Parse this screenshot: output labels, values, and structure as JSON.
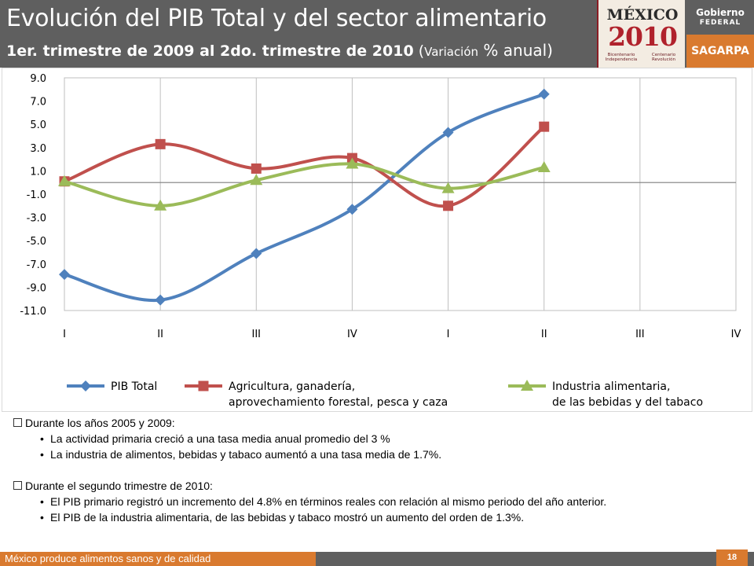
{
  "header": {
    "title": "Evolución del  PIB Total y del sector alimentario",
    "subtitle_bold": "1er. trimestre de 2009 al 2do. trimestre de 2010",
    "subtitle_paren_open": " (",
    "subtitle_small": "Variación",
    "subtitle_rest": " % anual)"
  },
  "logos": {
    "mexico_word": "MÉXICO",
    "mexico_year": "2010",
    "bicentenario_line1": "Bicentenario",
    "bicentenario_line2": "Independencia",
    "centenario_line1": "Centenario",
    "centenario_line2": "Revolución",
    "gobierno_line1": "Gobierno",
    "gobierno_line2": "FEDERAL",
    "sagarpa": "SAGARPA"
  },
  "chart_data": {
    "type": "line",
    "categories": [
      "I",
      "II",
      "III",
      "IV",
      "I",
      "II",
      "III",
      "IV"
    ],
    "y_ticks": [
      "9.0",
      "7.0",
      "5.0",
      "3.0",
      "1.0",
      "-1.0",
      "-3.0",
      "-5.0",
      "-7.0",
      "-9.0",
      "-11.0"
    ],
    "ylim": [
      -11,
      9
    ],
    "baseline": 0,
    "grid": "vertical",
    "smooth": true,
    "legend_position": "bottom",
    "series": [
      {
        "name": "PIB Total",
        "color": "#4f81bd",
        "marker": "diamond",
        "values": [
          -7.9,
          -10.1,
          -6.1,
          -2.3,
          4.3,
          7.6,
          null,
          null
        ]
      },
      {
        "name_line1": "Agricultura, ganadería,",
        "name_line2": "aprovechamiento forestal, pesca y caza",
        "color": "#c0504d",
        "marker": "square",
        "values": [
          0.1,
          3.3,
          1.2,
          2.1,
          -2.0,
          4.8,
          null,
          null
        ]
      },
      {
        "name_line1": "Industria alimentaria,",
        "name_line2": "de las bebidas y del tabaco",
        "color": "#9bbb59",
        "marker": "triangle",
        "values": [
          0.1,
          -2.0,
          0.2,
          1.6,
          -0.5,
          1.3,
          null,
          null
        ]
      }
    ]
  },
  "notes": {
    "section1": "Durante los años 2005 y 2009:",
    "section1_bullets": [
      "La actividad primaria creció a una tasa media anual promedio del 3 %",
      "La industria de alimentos, bebidas y tabaco aumentó a una tasa media de 1.7%."
    ],
    "section2": "Durante el segundo trimestre de 2010:",
    "section2_bullets": [
      "El PIB primario registró un incremento del  4.8% en términos reales con relación al mismo periodo del año anterior.",
      "El PIB de la industria alimentaria, de las bebidas y tabaco mostró un aumento del orden de 1.3%."
    ]
  },
  "footer": {
    "slogan": "México produce alimentos sanos y de calidad",
    "page_number": "18"
  }
}
